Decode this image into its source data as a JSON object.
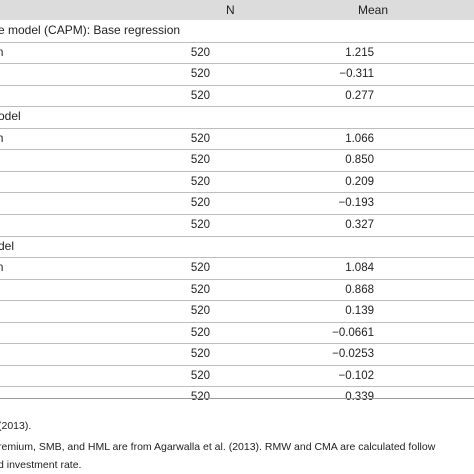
{
  "header": {
    "n": "N",
    "mean": "Mean"
  },
  "sections": [
    {
      "title": "e model (CAPM): Base regression",
      "rows": [
        {
          "label": "n",
          "n": "520",
          "mean": "1.215"
        },
        {
          "label": "",
          "n": "520",
          "mean": "−0.311"
        },
        {
          "label": "",
          "n": "520",
          "mean": "0.277"
        }
      ]
    },
    {
      "title": "odel",
      "rows": [
        {
          "label": "n",
          "n": "520",
          "mean": "1.066"
        },
        {
          "label": "",
          "n": "520",
          "mean": "0.850"
        },
        {
          "label": "",
          "n": "520",
          "mean": "0.209"
        },
        {
          "label": "",
          "n": "520",
          "mean": "−0.193"
        },
        {
          "label": "",
          "n": "520",
          "mean": "0.327"
        }
      ]
    },
    {
      "title": "del",
      "rows": [
        {
          "label": "n",
          "n": "520",
          "mean": "1.084"
        },
        {
          "label": "",
          "n": "520",
          "mean": "0.868"
        },
        {
          "label": "",
          "n": "520",
          "mean": "0.139"
        },
        {
          "label": "",
          "n": "520",
          "mean": "−0.0661"
        },
        {
          "label": "",
          "n": "520",
          "mean": "−0.0253"
        },
        {
          "label": "",
          "n": "520",
          "mean": "−0.102"
        },
        {
          "label": "",
          "n": "520",
          "mean": "0.339"
        }
      ]
    }
  ],
  "notes": [
    "(2013).",
    "remium, SMB, and HML are from Agarwalla et al. (2013). RMW and CMA are calculated follow",
    "d investment rate."
  ]
}
